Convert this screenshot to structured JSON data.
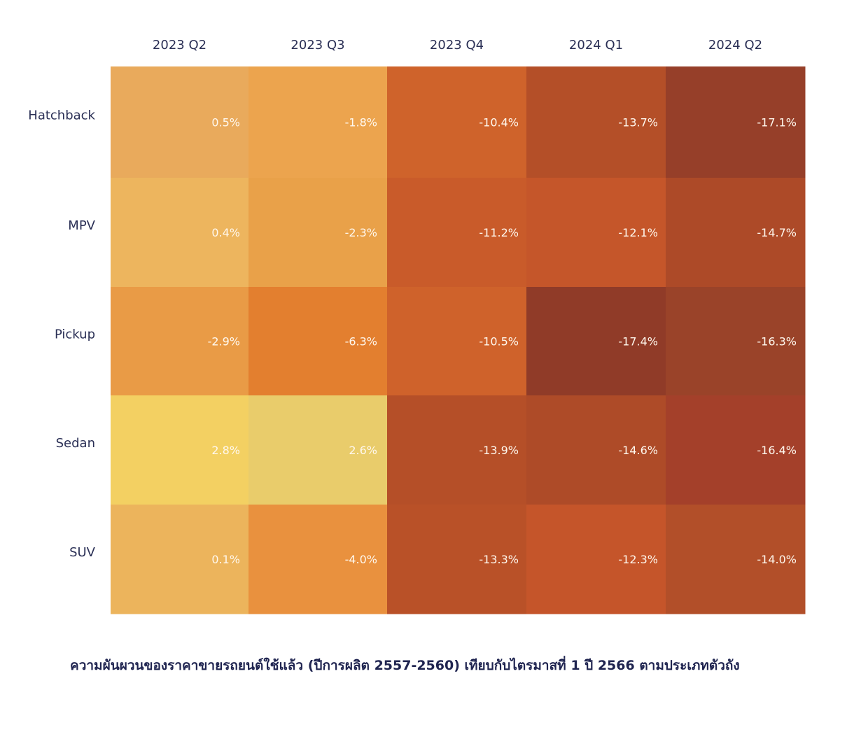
{
  "chart_data": {
    "type": "heatmap",
    "columns": [
      "2023 Q2",
      "2023 Q3",
      "2023 Q4",
      "2024 Q1",
      "2024 Q2"
    ],
    "rows": [
      "Hatchback",
      "MPV",
      "Pickup",
      "Sedan",
      "SUV"
    ],
    "values": [
      [
        0.5,
        -1.8,
        -10.4,
        -13.7,
        -17.1
      ],
      [
        0.4,
        -2.3,
        -11.2,
        -12.1,
        -14.7
      ],
      [
        -2.9,
        -6.3,
        -10.5,
        -17.4,
        -16.3
      ],
      [
        2.8,
        2.6,
        -13.9,
        -14.6,
        -16.4
      ],
      [
        0.1,
        -4.0,
        -13.3,
        -12.3,
        -14.0
      ]
    ],
    "value_labels": [
      [
        "0.5%",
        "-1.8%",
        "-10.4%",
        "-13.7%",
        "-17.1%"
      ],
      [
        "0.4%",
        "-2.3%",
        "-11.2%",
        "-12.1%",
        "-14.7%"
      ],
      [
        "-2.9%",
        "-6.3%",
        "-10.5%",
        "-17.4%",
        "-16.3%"
      ],
      [
        "2.8%",
        "2.6%",
        "-13.9%",
        "-14.6%",
        "-16.4%"
      ],
      [
        "0.1%",
        "-4.0%",
        "-13.3%",
        "-12.3%",
        "-14.0%"
      ]
    ],
    "colors": [
      [
        "#e9aa5c",
        "#eca44e",
        "#cf632b",
        "#b44f28",
        "#963f29"
      ],
      [
        "#edb55e",
        "#e9a149",
        "#c95b2a",
        "#c5562a",
        "#ad4a28"
      ],
      [
        "#e99b46",
        "#e37f2f",
        "#cf622b",
        "#903b28",
        "#9a4329"
      ],
      [
        "#f3d062",
        "#e9cc6b",
        "#b54f28",
        "#ae4b28",
        "#a4402a"
      ],
      [
        "#ecb45c",
        "#e9913e",
        "#b95128",
        "#c5552a",
        "#b24f29"
      ]
    ],
    "caption": "ความผันผวนของราคาขายรถยนต์ใช้แล้ว (ปีการผลิต 2557-2560) เทียบกับไตรมาสที่ 1 ปี 2566 ตามประเภทตัวถัง"
  }
}
